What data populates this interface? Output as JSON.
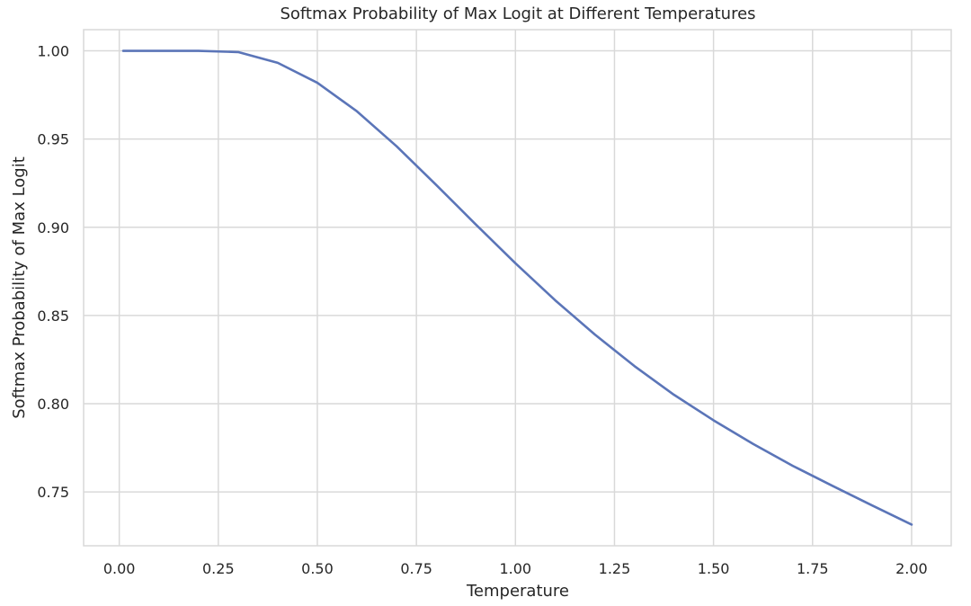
{
  "chart_data": {
    "type": "line",
    "title": "Softmax Probability of Max Logit at Different Temperatures",
    "xlabel": "Temperature",
    "ylabel": "Softmax Probability of Max Logit",
    "xlim": [
      -0.09,
      2.1
    ],
    "ylim": [
      0.7195,
      1.012
    ],
    "xticks": [
      0.0,
      0.25,
      0.5,
      0.75,
      1.0,
      1.25,
      1.5,
      1.75,
      2.0
    ],
    "xtick_labels": [
      "0.00",
      "0.25",
      "0.50",
      "0.75",
      "1.00",
      "1.25",
      "1.50",
      "1.75",
      "2.00"
    ],
    "yticks": [
      0.75,
      0.8,
      0.85,
      0.9,
      0.95,
      1.0
    ],
    "ytick_labels": [
      "0.75",
      "0.80",
      "0.85",
      "0.90",
      "0.95",
      "1.00"
    ],
    "grid": true,
    "legend": false,
    "series": [
      {
        "color": "#5b75b8",
        "x": [
          0.01,
          0.1,
          0.2,
          0.3,
          0.4,
          0.5,
          0.6,
          0.7,
          0.8,
          0.9,
          1.0,
          1.1,
          1.2,
          1.3,
          1.4,
          1.5,
          1.6,
          1.7,
          1.8,
          1.9,
          2.0
        ],
        "y": [
          1.0,
          1.0,
          1.0,
          0.9993,
          0.9932,
          0.9819,
          0.9657,
          0.9459,
          0.924,
          0.9016,
          0.8796,
          0.8587,
          0.8393,
          0.8214,
          0.8051,
          0.7906,
          0.7772,
          0.7648,
          0.7535,
          0.7424,
          0.7315
        ]
      }
    ]
  }
}
